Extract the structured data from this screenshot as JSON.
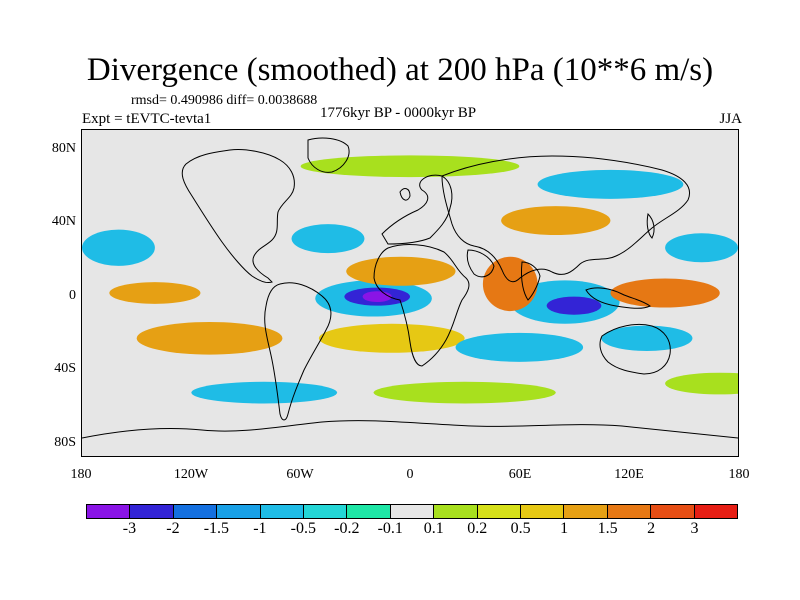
{
  "title": "Divergence (smoothed) at 200 hPa (10**6 m/s)",
  "stats_text": "rmsd= 0.490986 diff= 0.0038688",
  "period_text": "1776kyr BP - 0000kyr BP",
  "experiment_text": "Expt = tEVTC-tevta1",
  "season_text": "JJA",
  "lat_labels": [
    "80N",
    "40N",
    "0",
    "40S",
    "80S"
  ],
  "lon_labels": [
    "180",
    "120W",
    "60W",
    "0",
    "60E",
    "120E",
    "180"
  ],
  "colorbar": {
    "colors": [
      "#8a14e6",
      "#3324d6",
      "#1470e0",
      "#19a0e6",
      "#1fbce6",
      "#24d6d6",
      "#1ee6a6",
      "#e6e6e6",
      "#a8e01e",
      "#d6e01a",
      "#e6c814",
      "#e6a014",
      "#e67814",
      "#e64e14",
      "#e61e14"
    ],
    "labels": [
      "-3",
      "-2",
      "-1.5",
      "-1",
      "-0.5",
      "-0.2",
      "-0.1",
      "0.1",
      "0.2",
      "0.5",
      "1",
      "1.5",
      "2",
      "3"
    ]
  },
  "regions": [
    {
      "name": "equatorial-atlantic-low",
      "lon": -20,
      "lat": -3,
      "rlon": 32,
      "rlat": 10,
      "color": "#1fbce6"
    },
    {
      "name": "atlantic-core-low",
      "lon": -18,
      "lat": -2,
      "rlon": 18,
      "rlat": 5,
      "color": "#3324d6"
    },
    {
      "name": "atlantic-core-min",
      "lon": -18,
      "lat": -2,
      "rlon": 8,
      "rlat": 3,
      "color": "#8a14e6"
    },
    {
      "name": "indian-ocean-low",
      "lon": 85,
      "lat": -5,
      "rlon": 30,
      "rlat": 12,
      "color": "#1fbce6"
    },
    {
      "name": "indian-ocean-core",
      "lon": 90,
      "lat": -7,
      "rlon": 15,
      "rlat": 5,
      "color": "#3324d6"
    },
    {
      "name": "africa-north-high",
      "lon": -5,
      "lat": 12,
      "rlon": 30,
      "rlat": 8,
      "color": "#e6a014"
    },
    {
      "name": "arabian-high",
      "lon": 55,
      "lat": 5,
      "rlon": 15,
      "rlat": 15,
      "color": "#e67814"
    },
    {
      "name": "pacific-west-high",
      "lon": 140,
      "lat": 0,
      "rlon": 30,
      "rlat": 8,
      "color": "#e67814"
    },
    {
      "name": "eastern-pacific-high",
      "lon": -140,
      "lat": 0,
      "rlon": 25,
      "rlat": 6,
      "color": "#e6a014"
    },
    {
      "name": "south-atlantic-high",
      "lon": -10,
      "lat": -25,
      "rlon": 40,
      "rlat": 8,
      "color": "#e6c814"
    },
    {
      "name": "south-pacific-high",
      "lon": -110,
      "lat": -25,
      "rlon": 40,
      "rlat": 9,
      "color": "#e6a014"
    },
    {
      "name": "north-pacific-low",
      "lon": -160,
      "lat": 25,
      "rlon": 20,
      "rlat": 10,
      "color": "#1fbce6"
    },
    {
      "name": "north-atlantic-low",
      "lon": -45,
      "lat": 30,
      "rlon": 20,
      "rlat": 8,
      "color": "#1fbce6"
    },
    {
      "name": "south-indian-low",
      "lon": 60,
      "lat": -30,
      "rlon": 35,
      "rlat": 8,
      "color": "#1fbce6"
    },
    {
      "name": "southern-ocean-green",
      "lon": 30,
      "lat": -55,
      "rlon": 50,
      "rlat": 6,
      "color": "#a8e01e"
    },
    {
      "name": "asia-orange",
      "lon": 80,
      "lat": 40,
      "rlon": 30,
      "rlat": 8,
      "color": "#e6a014"
    },
    {
      "name": "arctic-green",
      "lon": 0,
      "lat": 70,
      "rlon": 60,
      "rlat": 6,
      "color": "#a8e01e"
    },
    {
      "name": "siberia-cyan",
      "lon": 110,
      "lat": 60,
      "rlon": 40,
      "rlat": 8,
      "color": "#1fbce6"
    },
    {
      "name": "west-pacific-low",
      "lon": 160,
      "lat": 25,
      "rlon": 20,
      "rlat": 8,
      "color": "#1fbce6"
    },
    {
      "name": "se-pacific-cyan",
      "lon": -80,
      "lat": -55,
      "rlon": 40,
      "rlat": 6,
      "color": "#1fbce6"
    },
    {
      "name": "australia-low",
      "lon": 130,
      "lat": -25,
      "rlon": 25,
      "rlat": 7,
      "color": "#1fbce6"
    },
    {
      "name": "south-pacific-green",
      "lon": 170,
      "lat": -50,
      "rlon": 30,
      "rlat": 6,
      "color": "#a8e01e"
    }
  ]
}
